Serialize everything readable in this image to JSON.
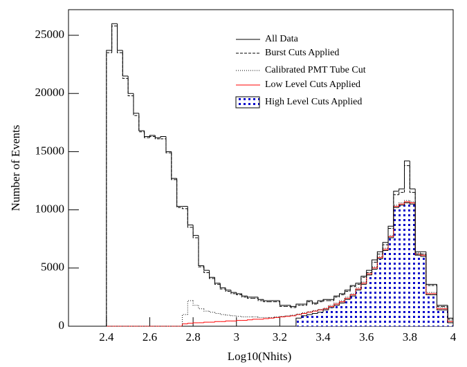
{
  "chart_data": {
    "type": "histogram",
    "x_label": "Log10(Nhits)",
    "y_label": "Number of Events",
    "xlim": [
      2.225,
      4.0
    ],
    "ylim": [
      0,
      27200
    ],
    "xticks": [
      2.4,
      2.6,
      2.8,
      3,
      3.2,
      3.4,
      3.6,
      3.8,
      4
    ],
    "yticks": [
      0,
      5000,
      10000,
      15000,
      20000,
      25000
    ],
    "bins": [
      2.4,
      2.425,
      2.45,
      2.475,
      2.5,
      2.525,
      2.55,
      2.575,
      2.6,
      2.625,
      2.65,
      2.675,
      2.7,
      2.725,
      2.75,
      2.775,
      2.8,
      2.825,
      2.85,
      2.875,
      2.9,
      2.925,
      2.95,
      2.975,
      3.0,
      3.025,
      3.05,
      3.075,
      3.1,
      3.125,
      3.15,
      3.175,
      3.2,
      3.225,
      3.25,
      3.275,
      3.3,
      3.325,
      3.35,
      3.375,
      3.4,
      3.425,
      3.45,
      3.475,
      3.5,
      3.525,
      3.55,
      3.575,
      3.6,
      3.625,
      3.65,
      3.675,
      3.7,
      3.725,
      3.75,
      3.775,
      3.8,
      3.825,
      3.85,
      3.875,
      3.9,
      3.925,
      3.95,
      3.975,
      4.0
    ],
    "series": [
      {
        "name": "All Data",
        "color": "#000000",
        "style": "solid",
        "values": [
          23700,
          26000,
          23700,
          21500,
          20000,
          18300,
          16800,
          16300,
          16400,
          16200,
          16300,
          15000,
          12700,
          10300,
          10300,
          8700,
          7800,
          5200,
          4800,
          4200,
          3700,
          3300,
          3100,
          2900,
          2800,
          2600,
          2500,
          2500,
          2300,
          2200,
          2200,
          2200,
          1800,
          1800,
          1700,
          1900,
          1900,
          2200,
          2000,
          2200,
          2300,
          2300,
          2600,
          2800,
          3100,
          3500,
          3700,
          4300,
          4800,
          5700,
          6400,
          7200,
          8600,
          11600,
          11800,
          14200,
          11800,
          6400,
          6400,
          3600,
          3600,
          1800,
          1800,
          700
        ]
      },
      {
        "name": "Burst Cuts Applied",
        "color": "#000000",
        "style": "dashed",
        "values": [
          23500,
          25800,
          23500,
          21300,
          19800,
          18100,
          16700,
          16200,
          16300,
          16100,
          16100,
          14900,
          12600,
          10200,
          10100,
          8500,
          7600,
          5100,
          4600,
          4100,
          3600,
          3200,
          3000,
          2800,
          2700,
          2500,
          2400,
          2400,
          2200,
          2100,
          2100,
          2100,
          1700,
          1700,
          1600,
          1800,
          1800,
          2100,
          1900,
          2100,
          2200,
          2200,
          2500,
          2700,
          3000,
          3400,
          3600,
          4200,
          4600,
          5500,
          6200,
          7000,
          8400,
          11300,
          11500,
          13800,
          11500,
          6200,
          6200,
          3500,
          3500,
          1700,
          1700,
          600
        ]
      },
      {
        "name": "Calibrated PMT Tube Cut",
        "color": "#000000",
        "style": "dotted",
        "values": [
          0,
          0,
          0,
          0,
          0,
          0,
          0,
          0,
          0,
          0,
          0,
          0,
          0,
          0,
          1000,
          2200,
          1800,
          1500,
          1300,
          1200,
          1100,
          1000,
          950,
          900,
          850,
          800,
          800,
          800,
          750,
          750,
          750,
          800,
          850,
          900,
          950,
          1050,
          1150,
          1250,
          1350,
          1450,
          1550,
          1800,
          2000,
          2200,
          2500,
          2800,
          3300,
          3800,
          4600,
          5100,
          6000,
          6700,
          7800,
          10400,
          10600,
          10800,
          10700,
          6300,
          6200,
          2900,
          2900,
          1600,
          1600,
          500
        ]
      },
      {
        "name": "Low Level Cuts Applied",
        "color": "#ff0000",
        "style": "solid",
        "values": [
          0,
          0,
          0,
          0,
          0,
          0,
          0,
          0,
          0,
          0,
          0,
          0,
          0,
          0,
          200,
          250,
          300,
          300,
          350,
          350,
          400,
          400,
          450,
          450,
          500,
          500,
          550,
          600,
          600,
          650,
          700,
          750,
          800,
          850,
          900,
          1000,
          1100,
          1200,
          1300,
          1400,
          1500,
          1700,
          1900,
          2100,
          2400,
          2700,
          3200,
          3700,
          4500,
          5000,
          5900,
          6600,
          7700,
          10300,
          10500,
          10700,
          10600,
          6200,
          6100,
          2800,
          2800,
          1500,
          1500,
          400
        ]
      },
      {
        "name": "High Level Cuts Applied",
        "color": "#0000cc",
        "style": "dots",
        "values": [
          0,
          0,
          0,
          0,
          0,
          0,
          0,
          0,
          0,
          0,
          0,
          0,
          0,
          0,
          0,
          0,
          0,
          0,
          0,
          0,
          0,
          0,
          0,
          0,
          0,
          0,
          0,
          0,
          0,
          0,
          0,
          0,
          0,
          0,
          0,
          700,
          900,
          1000,
          1100,
          1200,
          1400,
          1600,
          1800,
          2000,
          2300,
          2600,
          3100,
          3600,
          4400,
          4900,
          5800,
          6500,
          7600,
          10200,
          10400,
          10600,
          10500,
          6100,
          6000,
          2700,
          2700,
          1400,
          1400,
          300
        ]
      }
    ]
  }
}
